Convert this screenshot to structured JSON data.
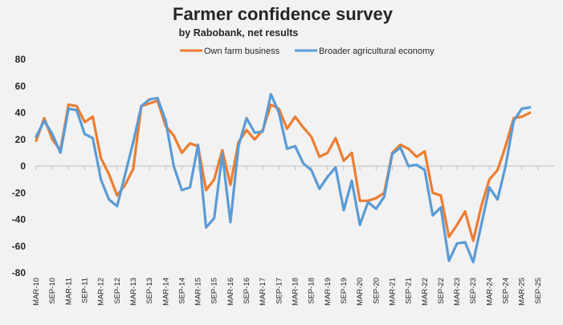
{
  "chart_data": {
    "type": "line",
    "title": "Farmer confidence survey",
    "subtitle": "by Rabobank, net results",
    "ylim": [
      -80,
      80
    ],
    "y_ticks": [
      80,
      60,
      40,
      20,
      0,
      -20,
      -40,
      -60,
      -80
    ],
    "grid": false,
    "legend_position": "top-center",
    "x_tick_labels": [
      "MAR-10",
      "SEP-10",
      "MAR-11",
      "SEP-11",
      "MAR-12",
      "SEP-12",
      "MAR-13",
      "SEP-13",
      "MAR-14",
      "SEP-14",
      "MAR-15",
      "SEP-15",
      "MAR-16",
      "SEP-16",
      "MAR-17",
      "SEP-17",
      "MAR-18",
      "SEP-18",
      "MAR-19",
      "SEP-19",
      "MAR-20",
      "SEP-20",
      "MAR-21",
      "SEP-21",
      "MAR-22",
      "SEP-22",
      "MAR-23",
      "SEP-23",
      "MAR-24",
      "SEP-24",
      "MAR-25",
      "SEP-25"
    ],
    "series": [
      {
        "name": "Own farm business",
        "color": "#ed7d31",
        "values": [
          19,
          36,
          20,
          12,
          46,
          45,
          33,
          37,
          6,
          -6,
          -22,
          -14,
          -2,
          45,
          47,
          49,
          30,
          23,
          10,
          17,
          15,
          -18,
          -10,
          12,
          -14,
          18,
          27,
          20,
          27,
          46,
          43,
          28,
          37,
          29,
          22,
          7,
          10,
          21,
          4,
          10,
          -26,
          -26,
          -24,
          -20,
          10,
          16,
          13,
          7,
          11,
          -20,
          -22,
          -53,
          -44,
          -34,
          -56,
          -30,
          -10,
          -3,
          15,
          36,
          37,
          40
        ]
      },
      {
        "name": "Broader agricultural economy",
        "color": "#5b9bd5",
        "values": [
          22,
          34,
          24,
          10,
          43,
          42,
          24,
          21,
          -10,
          -25,
          -30,
          -6,
          18,
          45,
          50,
          51,
          34,
          0,
          -18,
          -16,
          16,
          -46,
          -39,
          9,
          -42,
          15,
          36,
          25,
          26,
          54,
          40,
          13,
          15,
          2,
          -3,
          -17,
          -8,
          -1,
          -33,
          -11,
          -44,
          -27,
          -32,
          -23,
          9,
          14,
          0,
          1,
          -3,
          -37,
          -31,
          -71,
          -58,
          -57,
          -72,
          -44,
          -16,
          -25,
          0,
          34,
          43,
          44
        ]
      }
    ]
  }
}
